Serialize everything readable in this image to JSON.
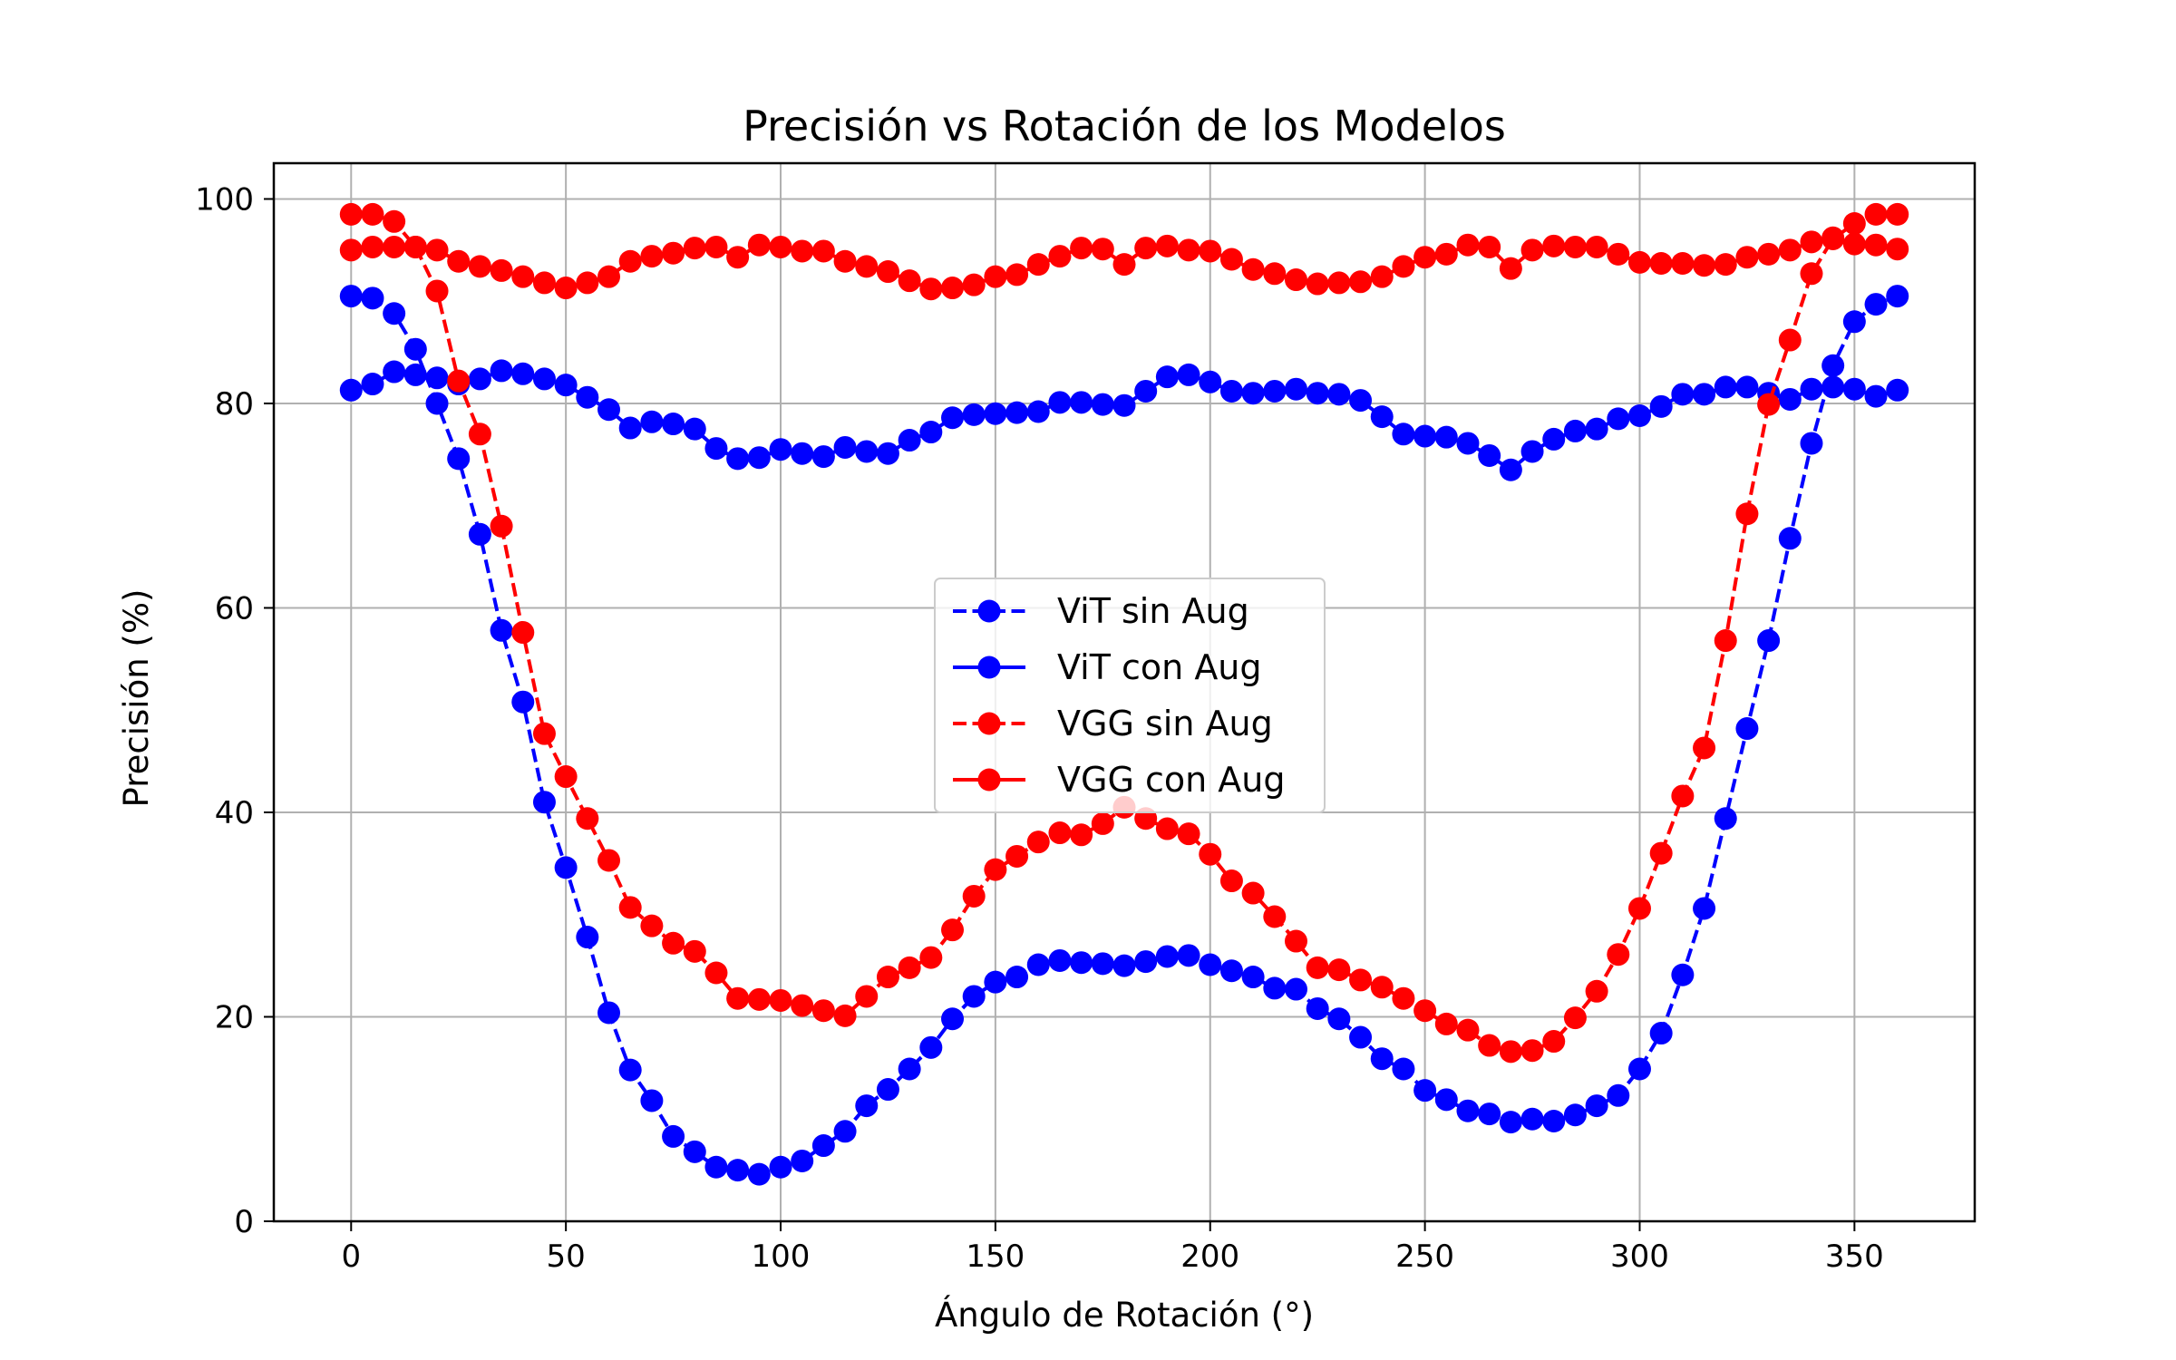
{
  "chart_data": {
    "type": "line",
    "title": "Precisión vs Rotación de los Modelos",
    "xlabel": "Ángulo de Rotación (°)",
    "ylabel": "Precisión (%)",
    "xlim": [
      -18,
      378
    ],
    "ylim": [
      0,
      103.5
    ],
    "xticks": [
      "0",
      "50",
      "100",
      "150",
      "200",
      "250",
      "300",
      "350"
    ],
    "yticks": [
      "0",
      "20",
      "40",
      "60",
      "80",
      "100"
    ],
    "grid": true,
    "legend_position": "center",
    "x": [
      0,
      5,
      10,
      15,
      20,
      25,
      30,
      35,
      40,
      45,
      50,
      55,
      60,
      65,
      70,
      75,
      80,
      85,
      90,
      95,
      100,
      105,
      110,
      115,
      120,
      125,
      130,
      135,
      140,
      145,
      150,
      155,
      160,
      165,
      170,
      175,
      180,
      185,
      190,
      195,
      200,
      205,
      210,
      215,
      220,
      225,
      230,
      235,
      240,
      245,
      250,
      255,
      260,
      265,
      270,
      275,
      280,
      285,
      290,
      295,
      300,
      305,
      310,
      315,
      320,
      325,
      330,
      335,
      340,
      345,
      350,
      355,
      360
    ],
    "series": [
      {
        "name": "ViT sin Aug",
        "color": "#0000ff",
        "linestyle": "dashed",
        "values": [
          90.5,
          90.3,
          88.8,
          85.3,
          80.0,
          74.6,
          67.2,
          57.8,
          50.8,
          41.0,
          34.6,
          27.8,
          20.4,
          14.8,
          11.8,
          8.3,
          6.8,
          5.3,
          5.0,
          4.6,
          5.3,
          5.9,
          7.4,
          8.8,
          11.3,
          12.9,
          14.9,
          17.0,
          19.8,
          22.0,
          23.4,
          23.9,
          25.1,
          25.5,
          25.3,
          25.2,
          25.0,
          25.4,
          25.9,
          26.0,
          25.1,
          24.5,
          23.9,
          22.8,
          22.7,
          20.8,
          19.8,
          18.0,
          15.9,
          14.9,
          12.8,
          11.9,
          10.8,
          10.5,
          9.7,
          10.0,
          9.8,
          10.4,
          11.3,
          12.3,
          14.9,
          18.4,
          24.1,
          30.6,
          39.4,
          48.2,
          56.8,
          66.8,
          76.1,
          83.7,
          88.0,
          89.7,
          90.5
        ]
      },
      {
        "name": "ViT con Aug",
        "color": "#0000ff",
        "linestyle": "solid",
        "values": [
          81.3,
          81.9,
          83.1,
          82.8,
          82.5,
          81.9,
          82.4,
          83.2,
          82.9,
          82.4,
          81.8,
          80.6,
          79.4,
          77.6,
          78.2,
          78.0,
          77.5,
          75.6,
          74.6,
          74.7,
          75.5,
          75.1,
          74.8,
          75.7,
          75.3,
          75.1,
          76.4,
          77.2,
          78.6,
          78.9,
          79.0,
          79.1,
          79.2,
          80.1,
          80.1,
          79.9,
          79.8,
          81.2,
          82.6,
          82.8,
          82.1,
          81.2,
          81.0,
          81.2,
          81.4,
          81.0,
          80.9,
          80.3,
          78.7,
          77.0,
          76.8,
          76.7,
          76.1,
          74.9,
          73.5,
          75.3,
          76.5,
          77.3,
          77.5,
          78.5,
          78.8,
          79.7,
          80.9,
          80.9,
          81.6,
          81.6,
          81.0,
          80.4,
          81.4,
          81.6,
          81.4,
          80.7,
          81.3
        ]
      },
      {
        "name": "VGG sin Aug",
        "color": "#ff0000",
        "linestyle": "dashed",
        "values": [
          98.5,
          98.5,
          97.8,
          95.3,
          91.0,
          82.2,
          77.0,
          68.0,
          57.6,
          47.7,
          43.5,
          39.4,
          35.3,
          30.7,
          28.9,
          27.2,
          26.4,
          24.3,
          21.8,
          21.7,
          21.6,
          21.1,
          20.6,
          20.1,
          22.0,
          23.9,
          24.8,
          25.8,
          28.5,
          31.8,
          34.4,
          35.7,
          37.1,
          38.0,
          37.8,
          38.9,
          40.5,
          39.4,
          38.4,
          37.9,
          35.9,
          33.3,
          32.1,
          29.8,
          27.4,
          24.8,
          24.6,
          23.6,
          22.9,
          21.8,
          20.6,
          19.3,
          18.7,
          17.2,
          16.6,
          16.7,
          17.6,
          19.9,
          22.5,
          26.1,
          30.6,
          36.0,
          41.6,
          46.3,
          56.8,
          69.2,
          79.9,
          86.2,
          92.7,
          96.1,
          97.6,
          98.5,
          98.5
        ]
      },
      {
        "name": "VGG con Aug",
        "color": "#ff0000",
        "linestyle": "solid",
        "values": [
          95.0,
          95.3,
          95.3,
          95.3,
          95.0,
          93.9,
          93.4,
          93.0,
          92.4,
          91.8,
          91.3,
          91.8,
          92.4,
          93.9,
          94.4,
          94.7,
          95.2,
          95.3,
          94.3,
          95.5,
          95.3,
          94.9,
          94.9,
          93.9,
          93.4,
          92.9,
          92.0,
          91.2,
          91.3,
          91.6,
          92.4,
          92.6,
          93.6,
          94.4,
          95.2,
          95.1,
          93.6,
          95.2,
          95.4,
          95.0,
          94.9,
          94.1,
          93.1,
          92.7,
          92.1,
          91.7,
          91.8,
          91.9,
          92.4,
          93.4,
          94.3,
          94.6,
          95.5,
          95.3,
          93.2,
          95.0,
          95.4,
          95.3,
          95.3,
          94.6,
          93.8,
          93.7,
          93.7,
          93.5,
          93.6,
          94.3,
          94.6,
          95.0,
          95.8,
          96.2,
          95.6,
          95.5,
          95.1
        ]
      }
    ]
  }
}
